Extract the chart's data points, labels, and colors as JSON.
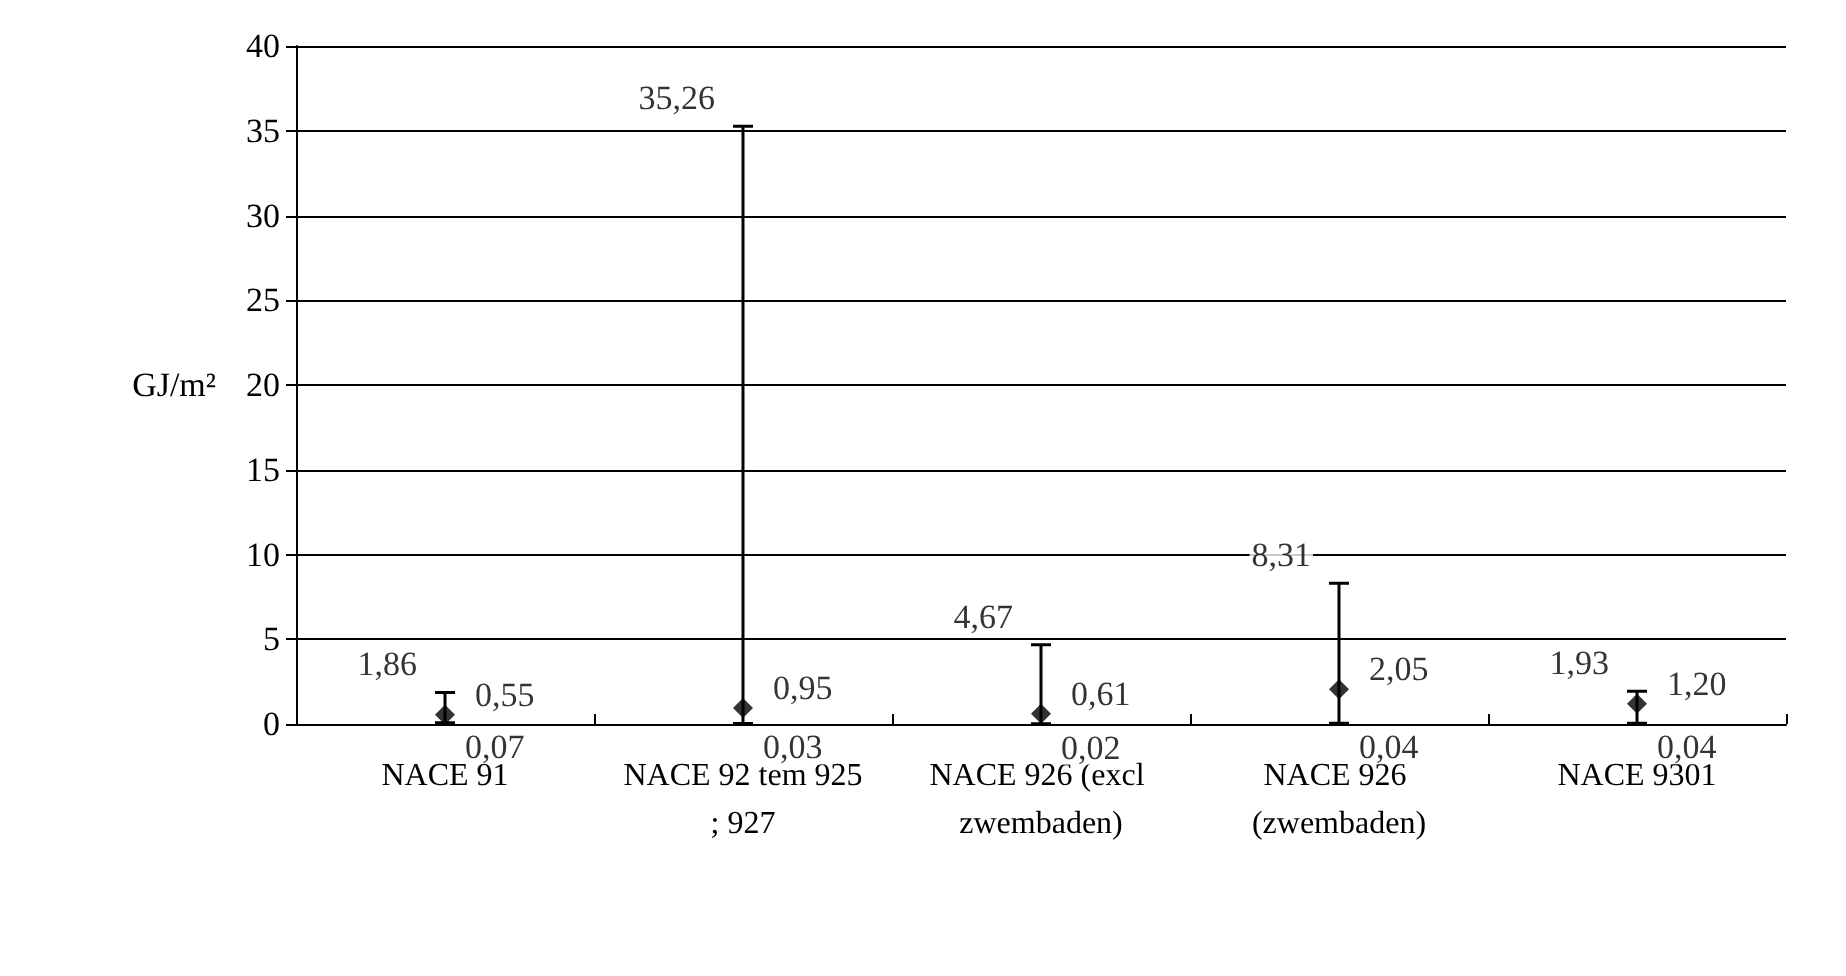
{
  "chart_data": {
    "type": "scatter",
    "ylabel": "GJ/m²",
    "categories": [
      "NACE 91",
      "NACE 92 tem 925; 927",
      "NACE 926 (excl zwembaden)",
      "NACE 926 (zwembaden)",
      "NACE 9301"
    ],
    "values": [
      0.55,
      0.95,
      0.61,
      2.05,
      1.2
    ],
    "errors": [
      [
        0.07,
        1.86
      ],
      [
        0.03,
        35.26
      ],
      [
        0.02,
        4.67
      ],
      [
        0.04,
        8.31
      ],
      [
        0.04,
        1.93
      ]
    ],
    "value_labels": [
      "0,55",
      "0,95",
      "0,61",
      "2,05",
      "1,20"
    ],
    "color": "#000000",
    "marker": "diamond",
    "annotations": [
      {
        "text": "1,86",
        "x": "NACE 91",
        "y": 1.86
      },
      {
        "text": "0,07",
        "x": "NACE 91",
        "y": 0.07
      },
      {
        "text": "35,26",
        "x": "NACE 92 tem 925; 927",
        "y": 35.26
      },
      {
        "text": "0,03",
        "x": "NACE 92 tem 925; 927",
        "y": 0.03
      },
      {
        "text": "4,67",
        "x": "NACE 926 (excl zwembaden)",
        "y": 4.67
      },
      {
        "text": "0,02",
        "x": "NACE 926 (excl zwembaden)",
        "y": 0.02
      },
      {
        "text": "8,31",
        "x": "NACE 926 (zwembaden)",
        "y": 8.31
      },
      {
        "text": "0,04",
        "x": "NACE 926 (zwembaden)",
        "y": 0.04
      },
      {
        "text": "1,93",
        "x": "NACE 9301",
        "y": 1.93
      },
      {
        "text": "0,04",
        "x": "NACE 9301",
        "y": 0.04
      }
    ],
    "ylim": [
      0,
      40
    ],
    "yticks": [
      0,
      5,
      10,
      15,
      20,
      25,
      30,
      35,
      40
    ],
    "grid": "y"
  }
}
